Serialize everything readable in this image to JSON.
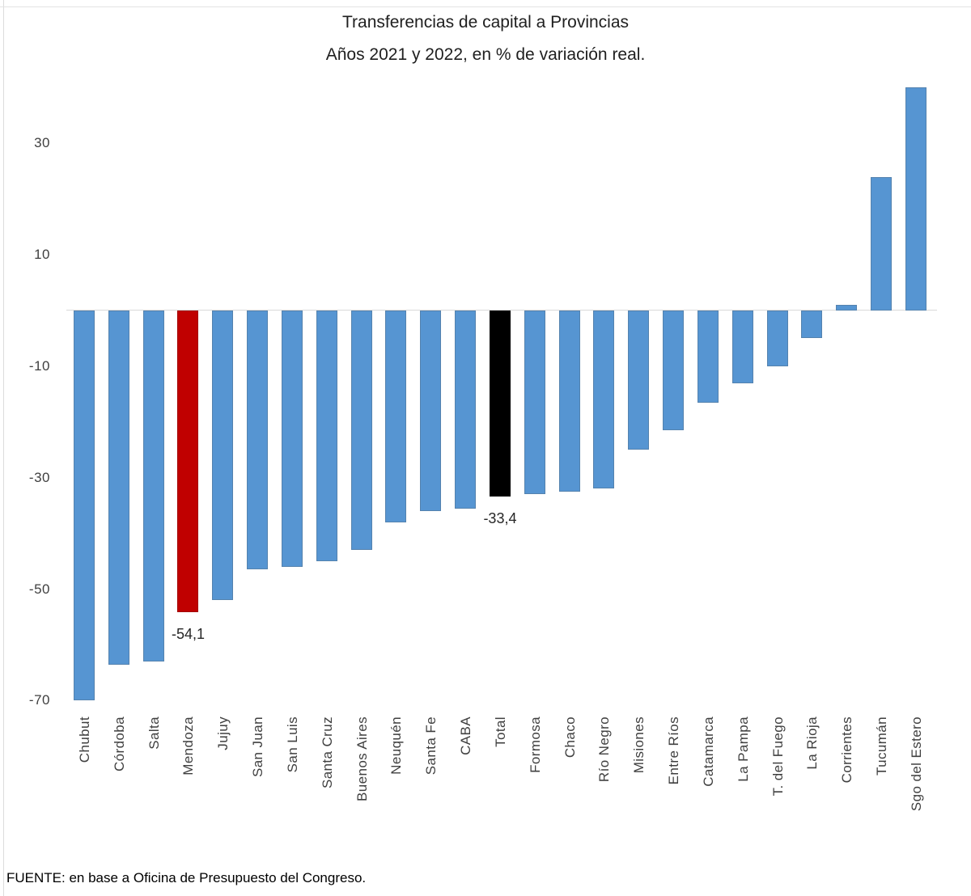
{
  "title": {
    "line1": "Transferencias de capital a Provincias",
    "line2": "Años 2021 y 2022, en % de variación real."
  },
  "source": "FUENTE: en base a Oficina de Presupuesto del Congreso.",
  "colors": {
    "bar_default": "#5695d2",
    "bar_highlight_mendoza": "#c00000",
    "bar_highlight_total": "#000000",
    "axis_line": "#d9d9d9",
    "tick_text": "#3f3f3f",
    "title_text": "#1f1f1f"
  },
  "chart_data": {
    "type": "bar",
    "title": "Transferencias de capital a Provincias",
    "subtitle": "Años 2021 y 2022, en % de variación real.",
    "ylabel": "",
    "xlabel": "",
    "units": "% de variación real",
    "grid": false,
    "legend": false,
    "ylim": [
      -75,
      45
    ],
    "yticks": [
      30,
      10,
      -10,
      -30,
      -50,
      -70
    ],
    "categories": [
      "Chubut",
      "Córdoba",
      "Salta",
      "Mendoza",
      "Jujuy",
      "San Juan",
      "San Luis",
      "Santa Cruz",
      "Buenos Aires",
      "Neuquén",
      "Santa Fe",
      "CABA",
      "Total",
      "Formosa",
      "Chaco",
      "Río Negro",
      "Misiones",
      "Entre Ríos",
      "Catamarca",
      "La Pampa",
      "T. del Fuego",
      "La Rioja",
      "Corrientes",
      "Tucumán",
      "Sgo del Estero"
    ],
    "values": [
      -70,
      -63.5,
      -63,
      -54.1,
      -52,
      -46.5,
      -46,
      -45,
      -43,
      -38,
      -36,
      -35.5,
      -33.4,
      -33,
      -32.5,
      -32,
      -25,
      -21.5,
      -16.5,
      -13,
      -10,
      -5,
      1,
      24,
      40
    ],
    "highlight": {
      "Mendoza": "#c00000",
      "Total": "#000000"
    },
    "data_labels": [
      {
        "category": "Mendoza",
        "text": "-54,1"
      },
      {
        "category": "Total",
        "text": "-33,4"
      }
    ]
  }
}
